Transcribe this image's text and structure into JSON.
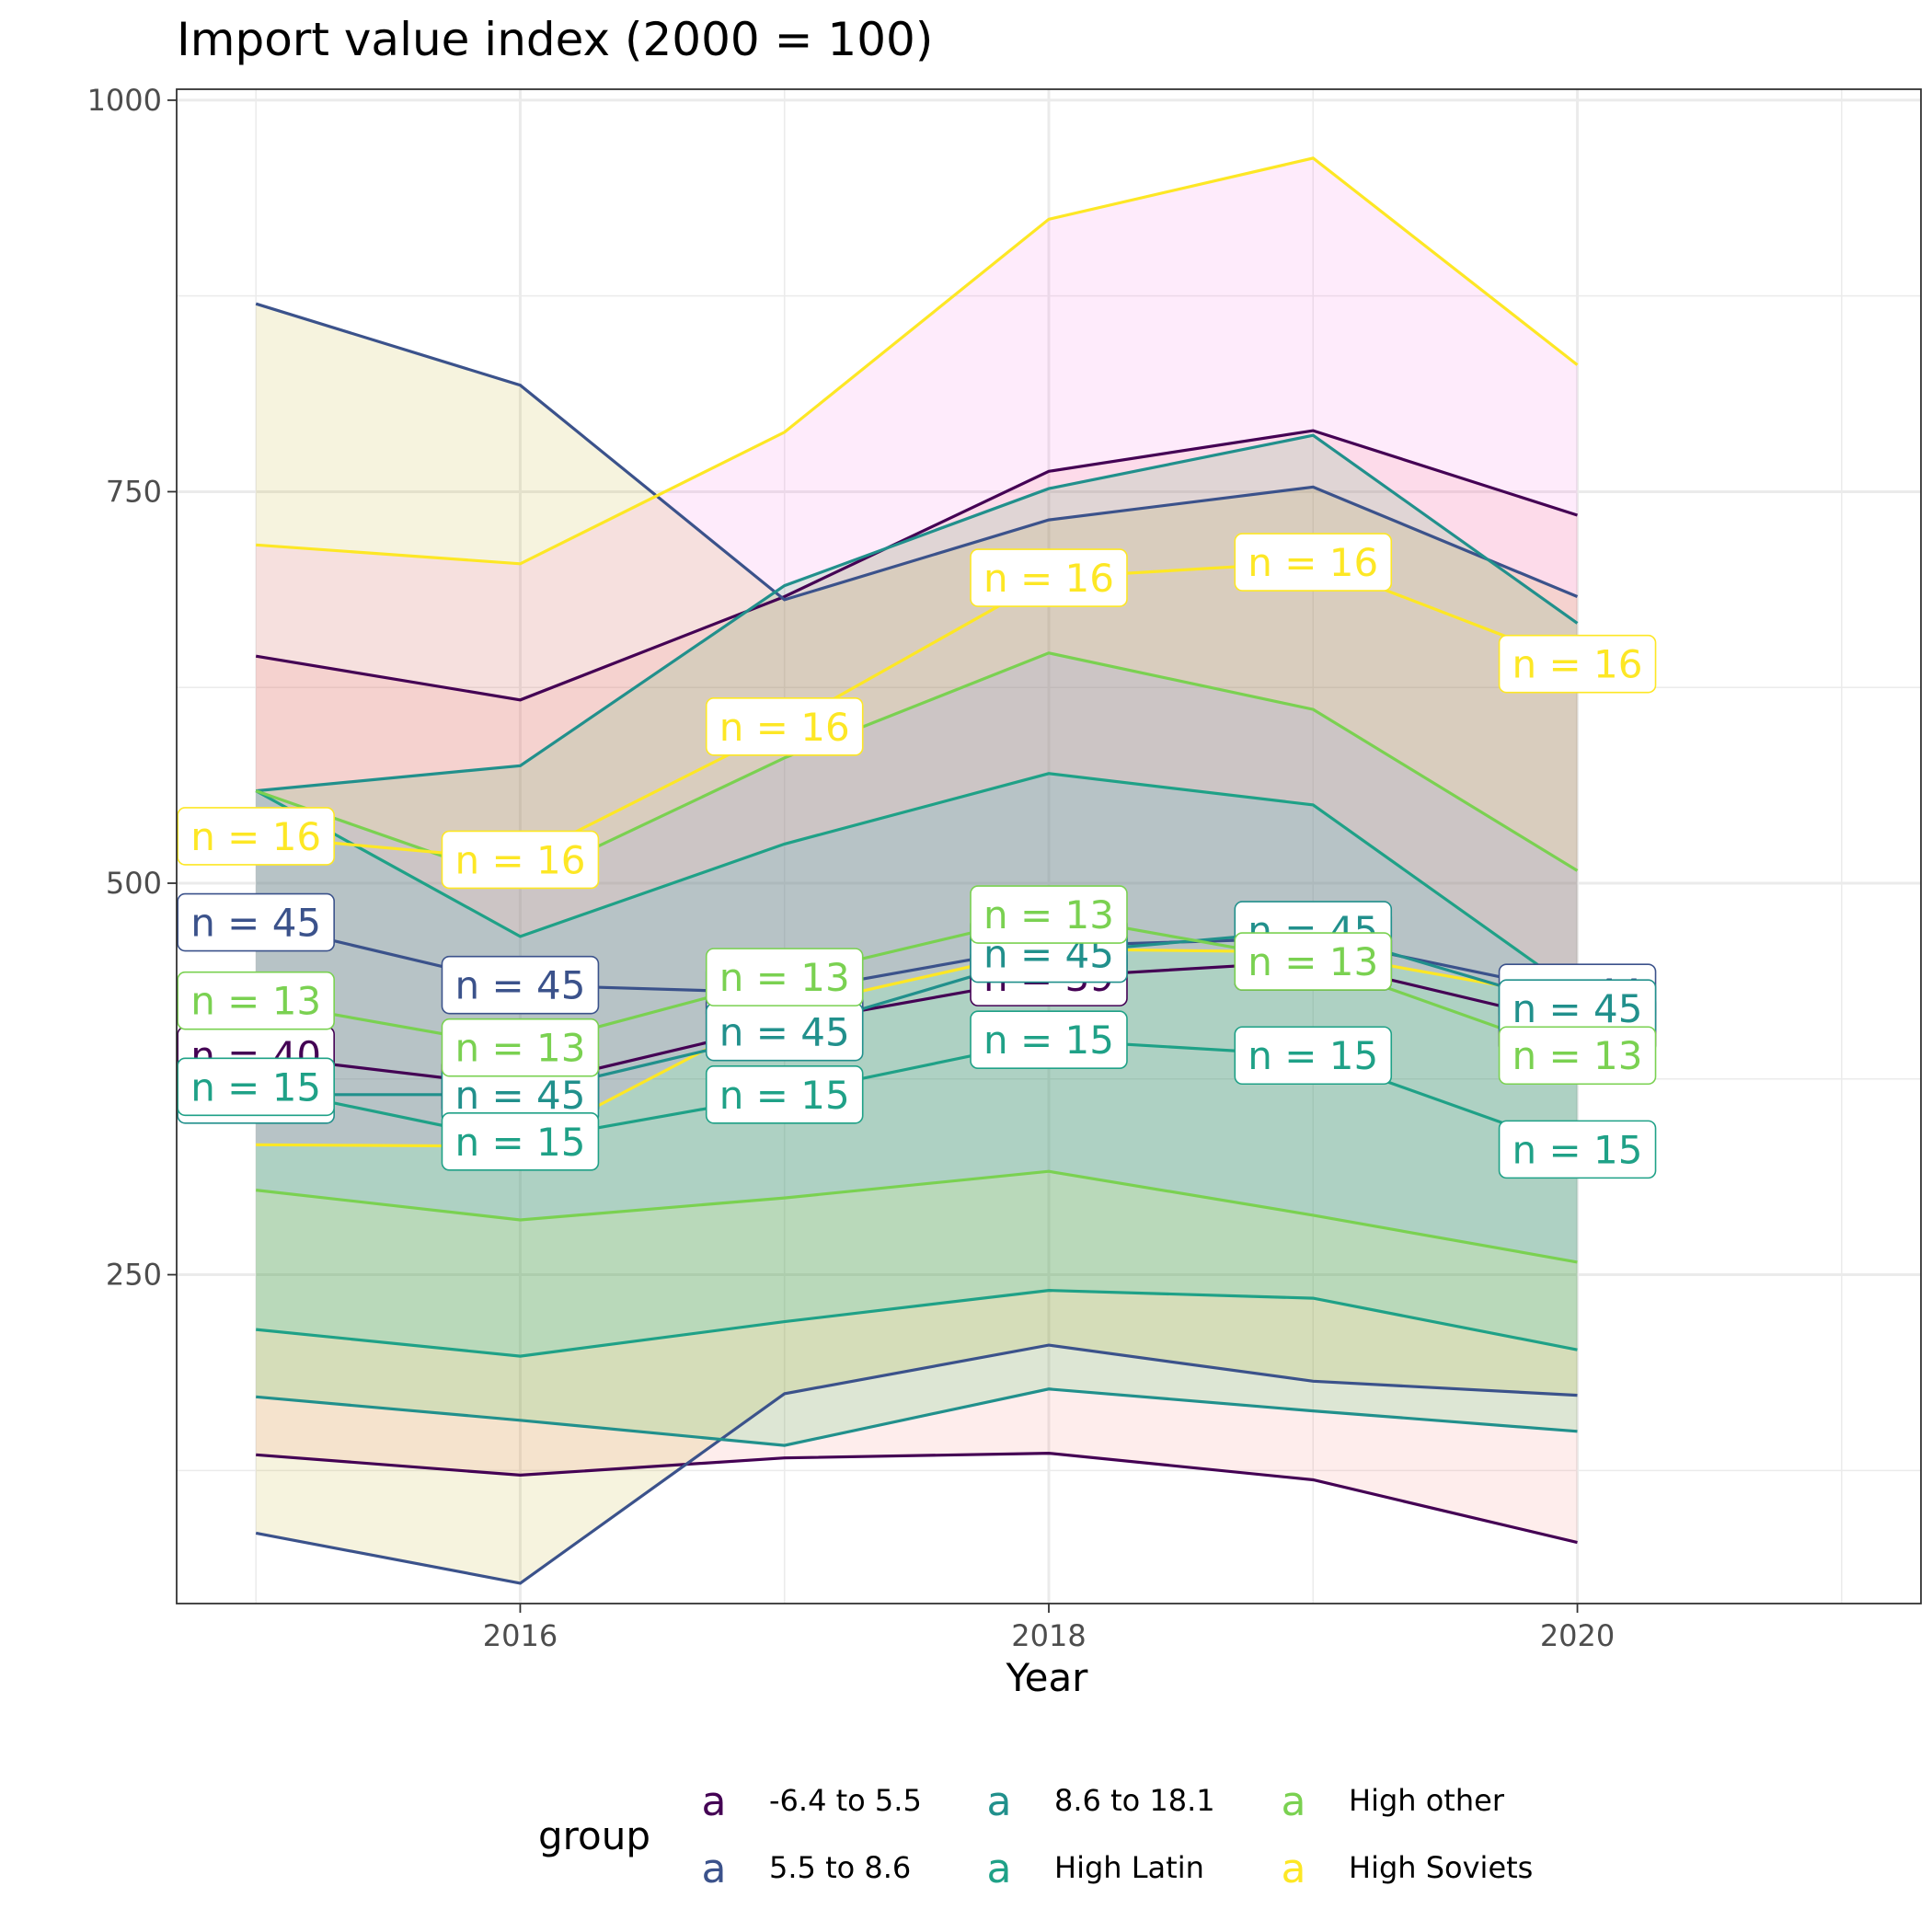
{
  "chart_data": {
    "type": "line",
    "title": "Import value index (2000 = 100)",
    "xlabel": "Year",
    "ylabel": "",
    "x": [
      2015,
      2016,
      2017,
      2018,
      2019,
      2020
    ],
    "x_ticks": [
      2016,
      2018,
      2020
    ],
    "xlim": [
      2014.7,
      2021.3
    ],
    "ylim": [
      40,
      1007
    ],
    "y_ticks": [
      250,
      500,
      750,
      1000
    ],
    "grid": true,
    "legend": {
      "title": "group",
      "position": "bottom",
      "key_glyph": "a"
    },
    "series": [
      {
        "name": "-6.4 to 5.5",
        "color": "#440154",
        "ribbon_color": "#F8766D",
        "values": [
          390,
          370,
          410,
          440,
          450,
          410
        ],
        "lower": [
          135,
          122,
          133,
          136,
          119,
          79
        ],
        "upper": [
          645,
          617,
          683,
          763,
          789,
          735
        ],
        "labels": [
          "n = 40",
          "n = 39",
          "n = 39",
          "n = 39",
          "n = 39",
          "n = 39"
        ]
      },
      {
        "name": "5.5 to 8.6",
        "color": "#3B528B",
        "ribbon_color": "#B79F00",
        "values": [
          475,
          435,
          430,
          460,
          465,
          430
        ],
        "lower": [
          85,
          53,
          174,
          205,
          182,
          173
        ],
        "upper": [
          870,
          818,
          681,
          732,
          753,
          683
        ],
        "labels": [
          "n = 45",
          "n = 45",
          "n = 45",
          "n = 45",
          "n = 45",
          "n = 44"
        ]
      },
      {
        "name": "8.6 to 18.1",
        "color": "#21908C",
        "ribbon_color": "#00BA38",
        "values": [
          365,
          365,
          405,
          455,
          470,
          420
        ],
        "lower": [
          172,
          157,
          141,
          177,
          163,
          150
        ],
        "upper": [
          559,
          575,
          690,
          752,
          786,
          666
        ],
        "labels": [
          "n = 45",
          "n = 45",
          "n = 45",
          "n = 45",
          "n = 45",
          "n = 45"
        ]
      },
      {
        "name": "High Latin",
        "color": "#1FA187",
        "ribbon_color": "#00BFC4",
        "values": [
          370,
          335,
          365,
          400,
          390,
          330
        ],
        "lower": [
          215,
          198,
          220,
          240,
          235,
          202
        ],
        "upper": [
          559,
          466,
          525,
          570,
          550,
          430
        ],
        "labels": [
          "n = 15",
          "n = 15",
          "n = 15",
          "n = 15",
          "n = 15",
          "n = 15"
        ]
      },
      {
        "name": "High other",
        "color": "#7AD151",
        "ribbon_color": "#619CFF",
        "values": [
          425,
          395,
          440,
          480,
          450,
          390
        ],
        "lower": [
          304,
          285,
          299,
          316,
          288,
          258
        ],
        "upper": [
          559,
          500,
          580,
          647,
          611,
          508
        ],
        "labels": [
          "n = 13",
          "n = 13",
          "n = 13",
          "n = 13",
          "n = 13",
          "n = 13"
        ]
      },
      {
        "name": "High Soviets",
        "color": "#FDE725",
        "ribbon_color": "#F564E3",
        "values": [
          530,
          515,
          600,
          695,
          705,
          640
        ],
        "lower": [
          333,
          332,
          420,
          458,
          456,
          426
        ],
        "upper": [
          716,
          704,
          788,
          924,
          963,
          831
        ],
        "labels": [
          "n = 16",
          "n = 16",
          "n = 16",
          "n = 16",
          "n = 16",
          "n = 16"
        ]
      }
    ]
  }
}
